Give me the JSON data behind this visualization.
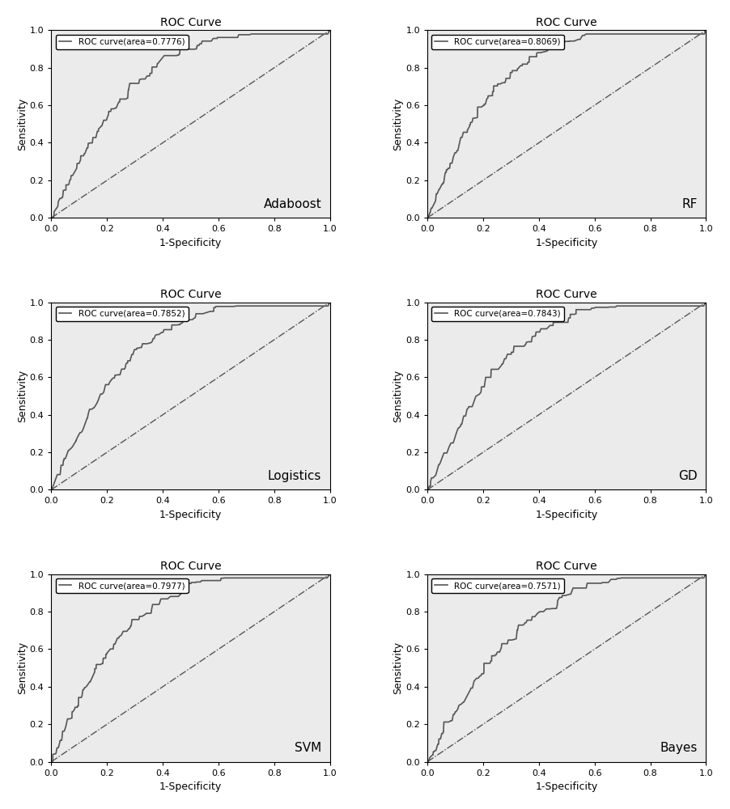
{
  "subplots": [
    {
      "title": "ROC Curve",
      "label": "ROC curve(area=0.7776)",
      "model": "Adaboost",
      "auc": 0.7776
    },
    {
      "title": "ROC Curve",
      "label": "ROC curve(area=0.8069)",
      "model": "RF",
      "auc": 0.8069
    },
    {
      "title": "ROC Curve",
      "label": "ROC curve(area=0.7852)",
      "model": "Logistics",
      "auc": 0.7852
    },
    {
      "title": "ROC Curve",
      "label": "ROC curve(area=0.7843)",
      "model": "GD",
      "auc": 0.7843
    },
    {
      "title": "ROC Curve",
      "label": "ROC curve(area=0.7977)",
      "model": "SVM",
      "auc": 0.7977
    },
    {
      "title": "ROC Curve",
      "label": "ROC curve(area=0.7571)",
      "model": "Bayes",
      "auc": 0.7571
    }
  ],
  "line_color": "#555555",
  "diag_color": "#555555",
  "xlabel": "1-Specificity",
  "ylabel": "Sensitivity",
  "xlim": [
    0.0,
    1.0
  ],
  "ylim": [
    0.0,
    1.0
  ],
  "xticks": [
    0.0,
    0.2,
    0.4,
    0.6,
    0.8,
    1.0
  ],
  "yticks": [
    0.0,
    0.2,
    0.4,
    0.6,
    0.8,
    1.0
  ],
  "bg_color": "#ebebeb",
  "figure_bg": "#ffffff",
  "seeds": [
    7,
    13,
    21,
    35,
    42,
    55
  ]
}
